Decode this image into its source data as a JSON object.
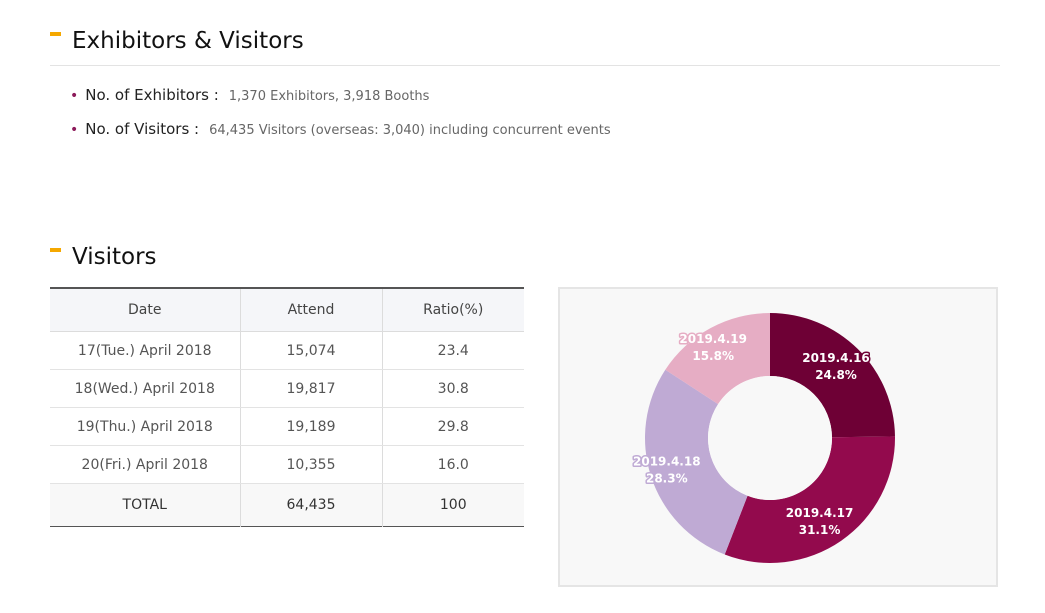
{
  "section1": {
    "title": "Exhibitors & Visitors",
    "items": [
      {
        "label": "No. of Exhibitors :",
        "value": "1,370 Exhibitors, 3,918 Booths"
      },
      {
        "label": "No. of Visitors :",
        "value": "64,435 Visitors (overseas: 3,040) including concurrent events"
      }
    ]
  },
  "section2": {
    "title": "Visitors"
  },
  "table": {
    "headers": [
      "Date",
      "Attend",
      "Ratio(%)"
    ],
    "rows": [
      [
        "17(Tue.) April 2018",
        "15,074",
        "23.4"
      ],
      [
        "18(Wed.) April 2018",
        "19,817",
        "30.8"
      ],
      [
        "19(Thu.) April 2018",
        "19,189",
        "29.8"
      ],
      [
        "20(Fri.) April 2018",
        "10,355",
        "16.0"
      ]
    ],
    "total": [
      "TOTAL",
      "64,435",
      "100"
    ]
  },
  "chart_data": {
    "type": "pie",
    "donut": true,
    "labels": [
      "2019.4.16",
      "2019.4.17",
      "2019.4.18",
      "2019.4.19"
    ],
    "values": [
      24.8,
      31.1,
      28.3,
      15.8
    ],
    "value_labels": [
      "24.8%",
      "31.1%",
      "28.3%",
      "15.8%"
    ],
    "colors": [
      "#6e0035",
      "#930a4d",
      "#bfaad4",
      "#e6adc4"
    ],
    "background": "#f8f8f8"
  }
}
